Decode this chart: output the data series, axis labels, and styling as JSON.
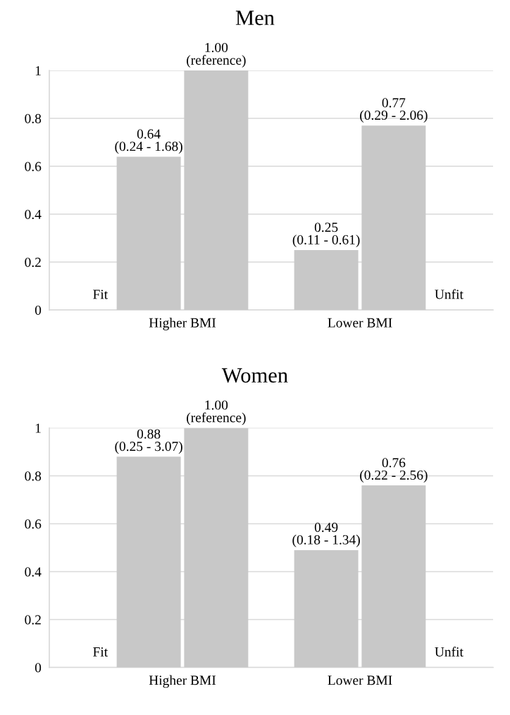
{
  "chart_data": [
    {
      "type": "bar",
      "title": "Men",
      "categories": [
        "Higher BMI",
        "Lower BMI"
      ],
      "series": [
        {
          "name": "Fit",
          "color": "#c8c8c8",
          "values": [
            0.64,
            0.25
          ],
          "value_labels": [
            "0.64\n(0.24 - 1.68)",
            "0.25\n(0.11 - 0.61)"
          ]
        },
        {
          "name": "Unfit",
          "color": "#c8c8c8",
          "values": [
            1.0,
            0.77
          ],
          "value_labels": [
            "1.00\n(reference)",
            "0.77\n(0.29 - 2.06)"
          ]
        }
      ],
      "ylim": [
        0,
        1
      ],
      "yticks": [
        0,
        0.2,
        0.4,
        0.6,
        0.8,
        1
      ],
      "grid": "y"
    },
    {
      "type": "bar",
      "title": "Women",
      "categories": [
        "Higher BMI",
        "Lower BMI"
      ],
      "series": [
        {
          "name": "Fit",
          "color": "#c8c8c8",
          "values": [
            0.88,
            0.49
          ],
          "value_labels": [
            "0.88\n(0.25 - 3.07)",
            "0.49\n(0.18 - 1.34)"
          ]
        },
        {
          "name": "Unfit",
          "color": "#c8c8c8",
          "values": [
            1.0,
            0.76
          ],
          "value_labels": [
            "1.00\n(reference)",
            "0.76\n(0.22 - 2.56)"
          ]
        }
      ],
      "ylim": [
        0,
        1
      ],
      "yticks": [
        0,
        0.2,
        0.4,
        0.6,
        0.8,
        1
      ],
      "grid": "y"
    }
  ]
}
